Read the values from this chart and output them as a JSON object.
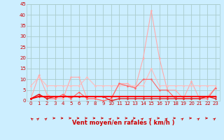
{
  "xlabel": "Vent moyen/en rafales ( km/h )",
  "xlim": [
    -0.5,
    23.5
  ],
  "ylim": [
    0,
    45
  ],
  "yticks": [
    0,
    5,
    10,
    15,
    20,
    25,
    30,
    35,
    40,
    45
  ],
  "xticks": [
    0,
    1,
    2,
    3,
    4,
    5,
    6,
    7,
    8,
    9,
    10,
    11,
    12,
    13,
    14,
    15,
    16,
    17,
    18,
    19,
    20,
    21,
    22,
    23
  ],
  "bg_color": "#cceeff",
  "grid_color": "#aacccc",
  "series": [
    {
      "x": [
        0,
        1,
        2,
        3,
        4,
        5,
        6,
        7,
        8,
        9,
        10,
        11,
        12,
        13,
        14,
        15,
        16,
        17,
        18,
        19,
        20,
        21,
        22,
        23
      ],
      "y": [
        1,
        12,
        3,
        1,
        1,
        11,
        11,
        1,
        1,
        0,
        1,
        8,
        8,
        6,
        20,
        42,
        20,
        5,
        5,
        1,
        9,
        1,
        2,
        6
      ],
      "color": "#ffaaaa",
      "lw": 0.8,
      "marker": "o",
      "ms": 1.8
    },
    {
      "x": [
        0,
        1,
        2,
        3,
        4,
        5,
        6,
        7,
        8,
        9,
        10,
        11,
        12,
        13,
        14,
        15,
        16,
        17,
        18,
        19,
        20,
        21,
        22,
        23
      ],
      "y": [
        7,
        11,
        7,
        7,
        7,
        7,
        7,
        11,
        7,
        7,
        7,
        7,
        7,
        7,
        7,
        15,
        7,
        7,
        7,
        7,
        7,
        7,
        7,
        7
      ],
      "color": "#ffbbbb",
      "lw": 0.8,
      "marker": "o",
      "ms": 1.8
    },
    {
      "x": [
        0,
        1,
        2,
        3,
        4,
        5,
        6,
        7,
        8,
        9,
        10,
        11,
        12,
        13,
        14,
        15,
        16,
        17,
        18,
        19,
        20,
        21,
        22,
        23
      ],
      "y": [
        1,
        3,
        1,
        1,
        3,
        1,
        4,
        1,
        1,
        0,
        1,
        8,
        7,
        6,
        10,
        10,
        5,
        5,
        1,
        1,
        1,
        1,
        1,
        6
      ],
      "color": "#ff6666",
      "lw": 0.8,
      "marker": "o",
      "ms": 1.8
    },
    {
      "x": [
        0,
        1,
        2,
        3,
        4,
        5,
        6,
        7,
        8,
        9,
        10,
        11,
        12,
        13,
        14,
        15,
        16,
        17,
        18,
        19,
        20,
        21,
        22,
        23
      ],
      "y": [
        1,
        3,
        1,
        2,
        2,
        2,
        2,
        2,
        2,
        2,
        0,
        1,
        1,
        1,
        1,
        1,
        1,
        1,
        1,
        1,
        1,
        1,
        2,
        1
      ],
      "color": "#dd2222",
      "lw": 1.0,
      "marker": "o",
      "ms": 1.8
    },
    {
      "x": [
        0,
        1,
        2,
        3,
        4,
        5,
        6,
        7,
        8,
        9,
        10,
        11,
        12,
        13,
        14,
        15,
        16,
        17,
        18,
        19,
        20,
        21,
        22,
        23
      ],
      "y": [
        1,
        2,
        2,
        2,
        2,
        2,
        2,
        2,
        2,
        2,
        2,
        2,
        2,
        2,
        2,
        2,
        2,
        2,
        2,
        2,
        2,
        2,
        2,
        2
      ],
      "color": "#ff0000",
      "lw": 1.4,
      "marker": "o",
      "ms": 1.8
    }
  ],
  "arrow_color": "#cc0000",
  "label_color": "#cc0000",
  "arrow_angles": [
    135,
    45,
    45,
    0,
    0,
    0,
    0,
    0,
    0,
    0,
    45,
    0,
    0,
    0,
    45,
    45,
    0,
    45,
    0,
    45,
    0,
    45,
    0,
    45
  ]
}
